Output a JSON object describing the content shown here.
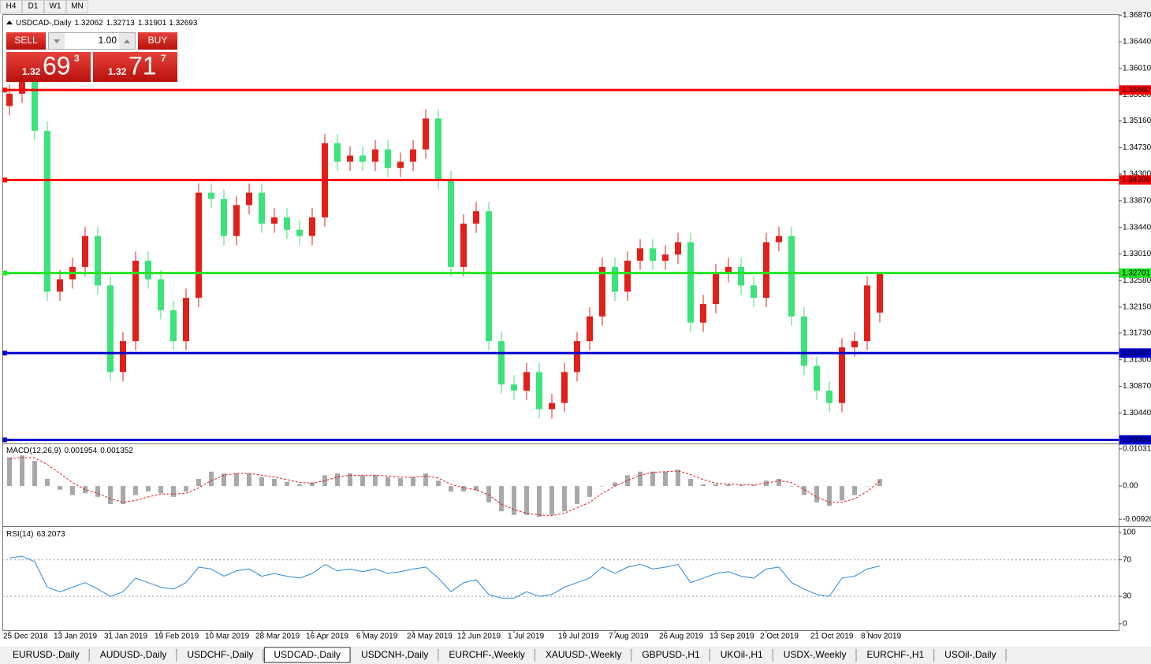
{
  "toolbar": {
    "timeframes": [
      "H4",
      "D1",
      "W1",
      "MN"
    ]
  },
  "trade_panel": {
    "sell_label": "SELL",
    "buy_label": "BUY",
    "volume": "1.00",
    "sell": {
      "big_figure": "1.32",
      "pips": "69",
      "fraction": "3"
    },
    "buy": {
      "big_figure": "1.32",
      "pips": "71",
      "fraction": "7"
    }
  },
  "chart_data": [
    {
      "type": "candlestick",
      "title": "USDCAD-,Daily",
      "up_color": "#e0201b",
      "down_color": "#3ce27a",
      "categories": [
        "25 Dec 2018",
        null,
        null,
        null,
        "13 Jan 2019",
        null,
        null,
        null,
        "31 Jan 2019",
        null,
        null,
        null,
        "19 Feb 2019",
        null,
        null,
        null,
        "10 Mar 2019",
        null,
        null,
        null,
        "28 Mar 2019",
        null,
        null,
        null,
        "16 Apr 2019",
        null,
        null,
        null,
        "6 May 2019",
        null,
        null,
        null,
        "24 May 2019",
        null,
        null,
        null,
        "12 Jun 2019",
        null,
        null,
        null,
        "1 Jul 2019",
        null,
        null,
        null,
        "19 Jul 2019",
        null,
        null,
        null,
        "7 Aug 2019",
        null,
        null,
        null,
        "26 Aug 2019",
        null,
        null,
        null,
        "13 Sep 2019",
        null,
        null,
        null,
        "2 Oct 2019",
        null,
        null,
        null,
        "21 Oct 2019",
        null,
        null,
        null,
        "8 Nov 2019",
        null
      ],
      "open": [
        1.354,
        1.356,
        1.358,
        1.35,
        1.324,
        1.326,
        1.328,
        1.333,
        1.325,
        1.311,
        1.316,
        1.329,
        1.326,
        1.321,
        1.316,
        1.323,
        1.34,
        1.339,
        1.333,
        1.338,
        1.34,
        1.335,
        1.336,
        1.334,
        1.333,
        1.336,
        1.348,
        1.345,
        1.346,
        1.345,
        1.347,
        1.344,
        1.345,
        1.347,
        1.352,
        1.342,
        1.328,
        1.335,
        1.337,
        1.316,
        1.309,
        1.308,
        1.311,
        1.305,
        1.306,
        1.311,
        1.316,
        1.32,
        1.328,
        1.324,
        1.329,
        1.331,
        1.329,
        1.33,
        1.332,
        1.319,
        1.322,
        1.327,
        1.328,
        1.325,
        1.323,
        1.332,
        1.333,
        1.32,
        1.312,
        1.308,
        1.306,
        1.315,
        1.316,
        1.32062
      ],
      "high": [
        1.3575,
        1.3595,
        1.3595,
        1.3515,
        1.3275,
        1.3295,
        1.3345,
        1.3345,
        1.3265,
        1.3175,
        1.3305,
        1.3305,
        1.3275,
        1.3225,
        1.3245,
        1.3415,
        1.3415,
        1.3405,
        1.3395,
        1.3415,
        1.3415,
        1.3375,
        1.3375,
        1.3355,
        1.3375,
        1.3495,
        1.3495,
        1.3475,
        1.3475,
        1.3485,
        1.3485,
        1.3465,
        1.3485,
        1.3535,
        1.3535,
        1.3435,
        1.3365,
        1.3385,
        1.3385,
        1.3175,
        1.3105,
        1.3125,
        1.3125,
        1.3075,
        1.3125,
        1.3175,
        1.3215,
        1.3295,
        1.3295,
        1.3305,
        1.3325,
        1.3325,
        1.3315,
        1.3335,
        1.3335,
        1.3235,
        1.3285,
        1.3295,
        1.3295,
        1.3265,
        1.3335,
        1.3345,
        1.3345,
        1.3215,
        1.3135,
        1.3095,
        1.3165,
        1.3175,
        1.3265,
        1.32713
      ],
      "low": [
        1.3525,
        1.3545,
        1.3485,
        1.3225,
        1.3225,
        1.3245,
        1.3265,
        1.3235,
        1.3095,
        1.3095,
        1.3145,
        1.3245,
        1.3195,
        1.3145,
        1.3145,
        1.3215,
        1.3375,
        1.3315,
        1.3315,
        1.3365,
        1.3335,
        1.3335,
        1.3325,
        1.3315,
        1.3315,
        1.3345,
        1.3435,
        1.3435,
        1.3435,
        1.3435,
        1.3425,
        1.3425,
        1.3435,
        1.3455,
        1.3405,
        1.3265,
        1.3265,
        1.3335,
        1.3145,
        1.3075,
        1.3065,
        1.3065,
        1.3035,
        1.3035,
        1.3045,
        1.3095,
        1.3145,
        1.3185,
        1.3225,
        1.3225,
        1.3275,
        1.3275,
        1.3275,
        1.3285,
        1.3175,
        1.3175,
        1.3205,
        1.3255,
        1.3235,
        1.3215,
        1.3215,
        1.3305,
        1.3185,
        1.3105,
        1.3065,
        1.3045,
        1.3045,
        1.3135,
        1.3145,
        1.31901
      ],
      "close": [
        1.356,
        1.358,
        1.35,
        1.324,
        1.326,
        1.328,
        1.333,
        1.325,
        1.311,
        1.316,
        1.329,
        1.326,
        1.321,
        1.316,
        1.323,
        1.34,
        1.339,
        1.333,
        1.338,
        1.34,
        1.335,
        1.336,
        1.334,
        1.333,
        1.336,
        1.348,
        1.345,
        1.346,
        1.345,
        1.347,
        1.344,
        1.345,
        1.347,
        1.352,
        1.342,
        1.328,
        1.335,
        1.337,
        1.316,
        1.309,
        1.308,
        1.311,
        1.305,
        1.306,
        1.311,
        1.316,
        1.32,
        1.328,
        1.324,
        1.329,
        1.331,
        1.329,
        1.33,
        1.332,
        1.319,
        1.322,
        1.327,
        1.328,
        1.325,
        1.323,
        1.332,
        1.333,
        1.32,
        1.312,
        1.308,
        1.306,
        1.315,
        1.316,
        1.325,
        1.32693
      ],
      "ylim": [
        1.29946,
        1.36886
      ],
      "yticks": [
        {
          "value": 1.3687,
          "label": "1.36870"
        },
        {
          "value": 1.3644,
          "label": "1.36440"
        },
        {
          "value": 1.3601,
          "label": "1.36010"
        },
        {
          "value": 1.3558,
          "label": "1.35580"
        },
        {
          "value": 1.3516,
          "label": "1.35160"
        },
        {
          "value": 1.3473,
          "label": "1.34730"
        },
        {
          "value": 1.343,
          "label": "1.34300"
        },
        {
          "value": 1.3387,
          "label": "1.33870"
        },
        {
          "value": 1.3344,
          "label": "1.33440"
        },
        {
          "value": 1.3301,
          "label": "1.33010"
        },
        {
          "value": 1.3258,
          "label": "1.32580"
        },
        {
          "value": 1.3215,
          "label": "1.32150"
        },
        {
          "value": 1.3173,
          "label": "1.31730"
        },
        {
          "value": 1.313,
          "label": "1.31300"
        },
        {
          "value": 1.3087,
          "label": "1.30870"
        },
        {
          "value": 1.3044,
          "label": "1.30440"
        }
      ],
      "hlines": [
        {
          "value": 1.3566,
          "label": "1.35660",
          "color": "#ff0000"
        },
        {
          "value": 1.34206,
          "label": "1.34206",
          "color": "#ff0000"
        },
        {
          "value": 1.32701,
          "label": "1.32701",
          "color": "#22e622"
        },
        {
          "value": 1.31407,
          "label": "1.31407",
          "color": "#0000d0"
        },
        {
          "value": 1.30004,
          "label": "1.30004",
          "color": "#0000d0"
        }
      ]
    },
    {
      "type": "macd",
      "title": "MACD(12,26,9)",
      "histogram": {
        "color": "#a8a8a8",
        "values": [
          0.008,
          0.0085,
          0.007,
          0.002,
          -0.001,
          -0.0025,
          -0.002,
          -0.003,
          -0.005,
          -0.005,
          -0.0025,
          -0.0015,
          -0.002,
          -0.003,
          -0.0015,
          0.002,
          0.004,
          0.0035,
          0.0035,
          0.0035,
          0.0025,
          0.002,
          0.0012,
          0.0005,
          0.001,
          0.003,
          0.0035,
          0.0035,
          0.003,
          0.003,
          0.0025,
          0.0022,
          0.0025,
          0.0035,
          0.0015,
          -0.0015,
          -0.0015,
          -0.0012,
          -0.0045,
          -0.007,
          -0.008,
          -0.008,
          -0.0085,
          -0.008,
          -0.007,
          -0.005,
          -0.003,
          0.0,
          0.001,
          0.003,
          0.004,
          0.004,
          0.004,
          0.0045,
          0.002,
          0.0005,
          0.0005,
          0.0005,
          0.0003,
          0.0002,
          0.0015,
          0.002,
          0.0,
          -0.0025,
          -0.0045,
          -0.0055,
          -0.004,
          -0.0025,
          0.0,
          0.001954
        ]
      },
      "signal": {
        "color": "#e0201b",
        "values": [
          0.0075,
          0.008,
          0.0078,
          0.006,
          0.0035,
          0.001,
          -0.001,
          -0.002,
          -0.0035,
          -0.0045,
          -0.004,
          -0.003,
          -0.0022,
          -0.0022,
          -0.002,
          -0.0005,
          0.0015,
          0.003,
          0.0035,
          0.0035,
          0.003,
          0.0025,
          0.0018,
          0.001,
          0.0008,
          0.0015,
          0.0025,
          0.003,
          0.003,
          0.003,
          0.0028,
          0.0025,
          0.0024,
          0.0028,
          0.0022,
          0.0005,
          -0.0005,
          -0.001,
          -0.0025,
          -0.005,
          -0.0065,
          -0.0075,
          -0.008,
          -0.0082,
          -0.0075,
          -0.006,
          -0.0045,
          -0.002,
          0.0,
          0.0015,
          0.003,
          0.0038,
          0.004,
          0.0042,
          0.0032,
          0.0018,
          0.0008,
          0.0005,
          0.0004,
          0.0003,
          0.0008,
          0.0015,
          0.001,
          -0.001,
          -0.003,
          -0.0045,
          -0.0045,
          -0.0035,
          -0.0015,
          0.001352
        ]
      },
      "ylim": [
        -0.0109,
        0.0116
      ],
      "yticks": [
        0.010311,
        {
          "value": 0,
          "label": "0.00"
        },
        {
          "value": -0.0092,
          "label": "-0.00920"
        }
      ]
    },
    {
      "type": "line",
      "title": "RSI(14)",
      "color": "#2a8ad8",
      "values": [
        72,
        74,
        68,
        40,
        35,
        40,
        45,
        38,
        30,
        35,
        50,
        45,
        40,
        38,
        45,
        62,
        60,
        52,
        58,
        60,
        52,
        55,
        52,
        50,
        55,
        65,
        58,
        60,
        57,
        60,
        55,
        57,
        60,
        62,
        50,
        35,
        45,
        48,
        32,
        28,
        28,
        35,
        30,
        32,
        40,
        45,
        50,
        62,
        55,
        62,
        65,
        60,
        62,
        65,
        45,
        50,
        55,
        57,
        52,
        50,
        60,
        62,
        45,
        38,
        32,
        30,
        50,
        52,
        60,
        63.2073
      ],
      "ylim": [
        -7,
        106
      ],
      "yticks": [
        0,
        30,
        70,
        100
      ],
      "levels": [
        70,
        30
      ]
    }
  ],
  "symbol_tabs": {
    "tabs": [
      "EURUSD-,Daily",
      "AUDUSD-,Daily",
      "USDCHF-,Daily",
      "USDCAD-,Daily",
      "USDCNH-,Daily",
      "EURCHF-,Weekly",
      "XAUUSD-,Weekly",
      "GBPUSD-,H1",
      "UKOil-,H1",
      "USDX-,Weekly",
      "EURCHF-,H1",
      "USOil-,Daily"
    ],
    "active": 3
  }
}
